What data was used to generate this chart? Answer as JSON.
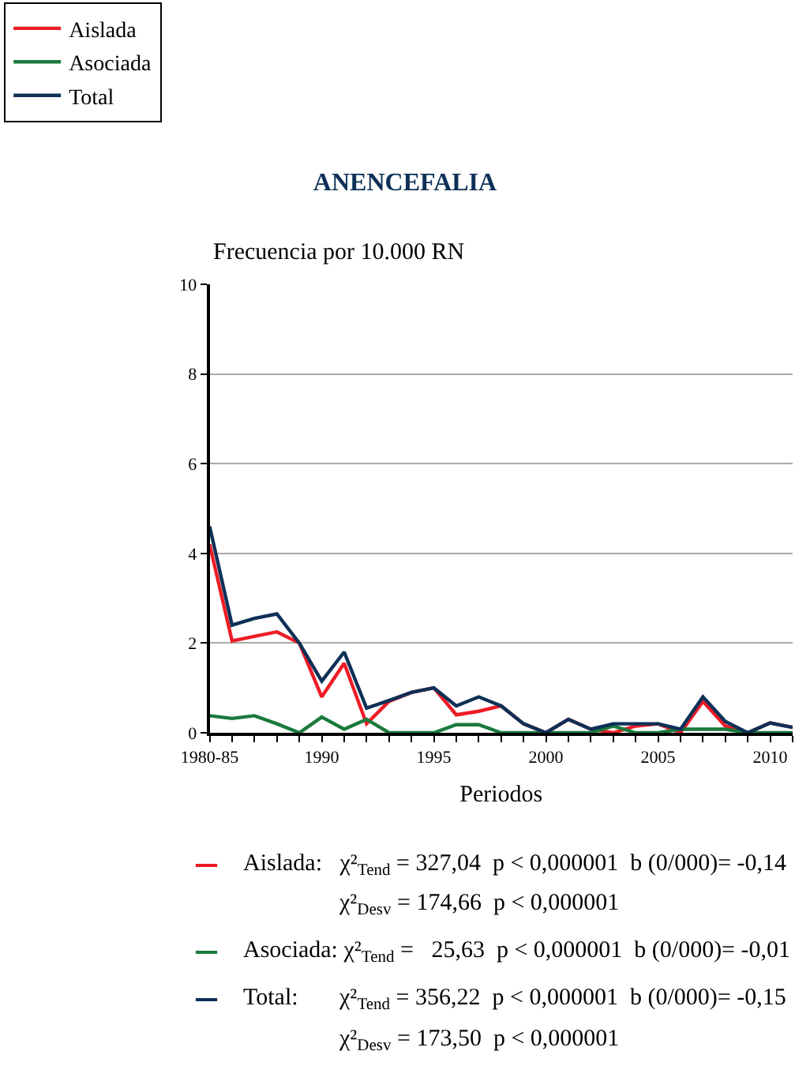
{
  "chart_data": {
    "type": "line",
    "title": "ANENCEFALIA",
    "ylabel": "Frecuencia por 10.000 RN",
    "xlabel": "Periodos",
    "categories": [
      "1980-85",
      null,
      null,
      null,
      null,
      "1990",
      null,
      null,
      null,
      null,
      "1995",
      null,
      null,
      null,
      null,
      "2000",
      null,
      null,
      null,
      null,
      "2005",
      null,
      null,
      null,
      null,
      "2010",
      null
    ],
    "series": [
      {
        "name": "Aislada",
        "color": "#ee1c25",
        "values": [
          4.2,
          2.05,
          2.15,
          2.25,
          2.0,
          0.8,
          1.55,
          0.2,
          0.7,
          0.9,
          1.0,
          0.4,
          0.48,
          0.6,
          0.2,
          0.0,
          0.3,
          0.08,
          0.0,
          0.15,
          0.2,
          0.0,
          0.7,
          0.15,
          0.0,
          0.22,
          0.12
        ]
      },
      {
        "name": "Asociada",
        "color": "#1a7a3c",
        "values": [
          0.38,
          0.32,
          0.38,
          0.2,
          0.0,
          0.35,
          0.08,
          0.3,
          0.0,
          0.0,
          0.0,
          0.18,
          0.18,
          0.0,
          0.0,
          0.0,
          0.0,
          0.0,
          0.15,
          0.0,
          0.0,
          0.08,
          0.08,
          0.08,
          0.0,
          0.0,
          0.0
        ]
      },
      {
        "name": "Total",
        "color": "#0d3057",
        "values": [
          4.6,
          2.4,
          2.55,
          2.65,
          2.0,
          1.15,
          1.8,
          0.55,
          0.72,
          0.9,
          1.0,
          0.6,
          0.8,
          0.6,
          0.2,
          0.0,
          0.3,
          0.08,
          0.2,
          0.2,
          0.2,
          0.08,
          0.8,
          0.25,
          0.0,
          0.22,
          0.12
        ]
      }
    ],
    "ylim": [
      0,
      10
    ],
    "yticks": [
      0,
      2,
      4,
      6,
      8,
      10
    ],
    "grid": "y",
    "legend": "top left",
    "marker": "none",
    "line_style": "solid",
    "annotations": [
      "Aislada:   χ²$_{Tend}$ = 327,04  p < 0,000001  b (0/000)= -0,14",
      "χ²$_{Desv}$ = 174,66  p < 0,000001",
      "Asociada: χ²$_{Tend}$ =   25,63  p < 0,000001  b (0/000)= -0,01",
      "Total:       χ²$_{Tend}$ = 356,22  p < 0,000001  b (0/000)= -0,15",
      "χ²$_{Desv}$ = 173,50  p < 0,000001"
    ]
  }
}
